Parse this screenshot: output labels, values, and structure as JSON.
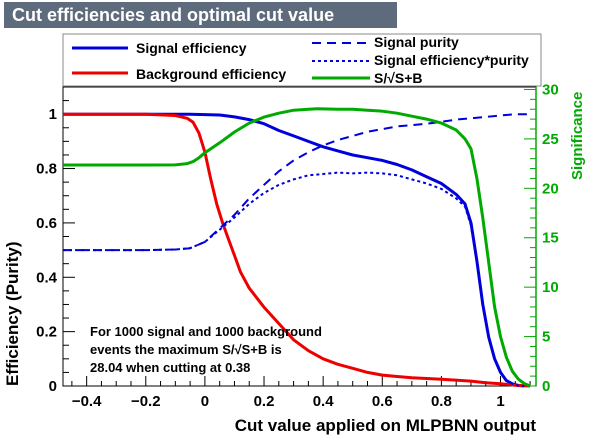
{
  "title": "Cut efficiencies and optimal cut value",
  "colors": {
    "signal": "#0000dd",
    "background": "#ee0000",
    "significance": "#00aa00",
    "legend_bg": "#ffffff",
    "title_bg": "#5d6b7d"
  },
  "legend": {
    "signal_efficiency": "Signal efficiency",
    "background_efficiency": "Background efficiency",
    "signal_purity": "Signal purity",
    "signal_eff_purity": "Signal efficiency*purity",
    "significance": "S/√S+B"
  },
  "annotation": {
    "line1": "For 1000 signal and 1000 background",
    "line2": "events the maximum S/√S+B is",
    "line3": "28.04 when cutting at  0.38"
  },
  "chart_data": {
    "type": "line",
    "title": "Cut efficiencies and optimal cut value",
    "xlabel": "Cut value applied on MLPBNN output",
    "ylabel": "Efficiency (Purity)",
    "y2label": "Significance",
    "xlim": [
      -0.48,
      1.12
    ],
    "ylim": [
      0,
      1.1
    ],
    "y2lim": [
      0,
      30.25
    ],
    "x_ticks": [
      "−0.4",
      "−0.2",
      "0",
      "0.2",
      "0.4",
      "0.6",
      "0.8",
      "1"
    ],
    "x_tick_values": [
      -0.4,
      -0.2,
      0,
      0.2,
      0.4,
      0.6,
      0.8,
      1
    ],
    "y_ticks": [
      "0",
      "0.2",
      "0.4",
      "0.6",
      "0.8",
      "1"
    ],
    "y_tick_values": [
      0,
      0.2,
      0.4,
      0.6,
      0.8,
      1
    ],
    "y2_ticks": [
      "0",
      "5",
      "10",
      "15",
      "20",
      "25",
      "30"
    ],
    "y2_tick_values": [
      0,
      5,
      10,
      15,
      20,
      25,
      30
    ],
    "series": [
      {
        "name": "Signal efficiency",
        "axis": "left",
        "style": "solid",
        "x": [
          -0.48,
          -0.2,
          -0.05,
          0.05,
          0.1,
          0.15,
          0.2,
          0.25,
          0.3,
          0.35,
          0.4,
          0.45,
          0.5,
          0.55,
          0.6,
          0.65,
          0.7,
          0.75,
          0.8,
          0.85,
          0.88,
          0.9,
          0.92,
          0.94,
          0.96,
          0.98,
          1.0,
          1.02,
          1.04,
          1.06,
          1.08
        ],
        "y": [
          1.0,
          1.0,
          1.0,
          0.997,
          0.99,
          0.98,
          0.965,
          0.94,
          0.92,
          0.9,
          0.88,
          0.865,
          0.85,
          0.84,
          0.83,
          0.815,
          0.795,
          0.77,
          0.745,
          0.705,
          0.67,
          0.6,
          0.46,
          0.3,
          0.18,
          0.1,
          0.05,
          0.02,
          0.008,
          0.002,
          0.0
        ]
      },
      {
        "name": "Background efficiency",
        "axis": "left",
        "style": "solid",
        "x": [
          -0.48,
          -0.2,
          -0.1,
          -0.06,
          -0.04,
          -0.02,
          0.0,
          0.02,
          0.04,
          0.06,
          0.08,
          0.1,
          0.12,
          0.15,
          0.2,
          0.25,
          0.3,
          0.35,
          0.4,
          0.45,
          0.5,
          0.55,
          0.6,
          0.65,
          0.7,
          0.8,
          0.9,
          0.95,
          1.0,
          1.05,
          1.1
        ],
        "y": [
          1.0,
          1.0,
          0.995,
          0.985,
          0.97,
          0.93,
          0.86,
          0.76,
          0.67,
          0.6,
          0.54,
          0.48,
          0.42,
          0.36,
          0.29,
          0.23,
          0.17,
          0.13,
          0.1,
          0.08,
          0.065,
          0.05,
          0.04,
          0.035,
          0.03,
          0.025,
          0.018,
          0.012,
          0.008,
          0.003,
          0.0
        ]
      },
      {
        "name": "Signal purity",
        "axis": "left",
        "style": "dashed",
        "x": [
          -0.48,
          -0.2,
          -0.1,
          -0.05,
          0.0,
          0.05,
          0.1,
          0.15,
          0.2,
          0.25,
          0.3,
          0.35,
          0.4,
          0.45,
          0.5,
          0.55,
          0.6,
          0.65,
          0.7,
          0.75,
          0.8,
          0.85,
          0.9,
          0.95,
          1.0,
          1.05,
          1.1
        ],
        "y": [
          0.5,
          0.5,
          0.502,
          0.507,
          0.53,
          0.58,
          0.63,
          0.69,
          0.74,
          0.79,
          0.83,
          0.86,
          0.885,
          0.905,
          0.92,
          0.935,
          0.945,
          0.955,
          0.96,
          0.965,
          0.972,
          0.98,
          0.985,
          0.99,
          0.995,
          1.0,
          1.0
        ]
      },
      {
        "name": "Signal efficiency*purity",
        "axis": "left",
        "style": "dotted",
        "x": [
          -0.48,
          -0.2,
          -0.1,
          -0.05,
          0.0,
          0.05,
          0.1,
          0.15,
          0.2,
          0.25,
          0.3,
          0.35,
          0.4,
          0.45,
          0.5,
          0.55,
          0.6,
          0.65,
          0.7,
          0.75,
          0.8,
          0.85,
          0.88,
          0.9,
          0.92,
          0.94,
          0.96,
          0.98,
          1.0,
          1.02,
          1.04,
          1.06,
          1.08
        ],
        "y": [
          0.5,
          0.5,
          0.502,
          0.507,
          0.53,
          0.575,
          0.62,
          0.67,
          0.71,
          0.74,
          0.76,
          0.775,
          0.78,
          0.785,
          0.782,
          0.785,
          0.782,
          0.775,
          0.76,
          0.745,
          0.725,
          0.69,
          0.66,
          0.59,
          0.455,
          0.3,
          0.18,
          0.1,
          0.05,
          0.02,
          0.008,
          0.002,
          0.0
        ]
      },
      {
        "name": "S/√S+B",
        "axis": "right",
        "style": "solid",
        "x": [
          -0.48,
          -0.2,
          -0.1,
          -0.06,
          -0.04,
          -0.02,
          0.0,
          0.05,
          0.1,
          0.15,
          0.2,
          0.25,
          0.3,
          0.35,
          0.38,
          0.45,
          0.5,
          0.55,
          0.6,
          0.65,
          0.7,
          0.75,
          0.8,
          0.85,
          0.88,
          0.9,
          0.92,
          0.94,
          0.96,
          0.98,
          1.0,
          1.02,
          1.04,
          1.06,
          1.08,
          1.1
        ],
        "y": [
          22.36,
          22.36,
          22.37,
          22.5,
          22.7,
          23.1,
          23.6,
          24.6,
          25.7,
          26.6,
          27.2,
          27.6,
          27.9,
          28.0,
          28.04,
          28.0,
          28.0,
          27.9,
          27.8,
          27.6,
          27.3,
          27.0,
          26.6,
          25.9,
          25.0,
          24.0,
          21.0,
          17.0,
          12.5,
          8.0,
          5.0,
          2.9,
          1.5,
          0.7,
          0.25,
          0.0
        ]
      }
    ]
  }
}
